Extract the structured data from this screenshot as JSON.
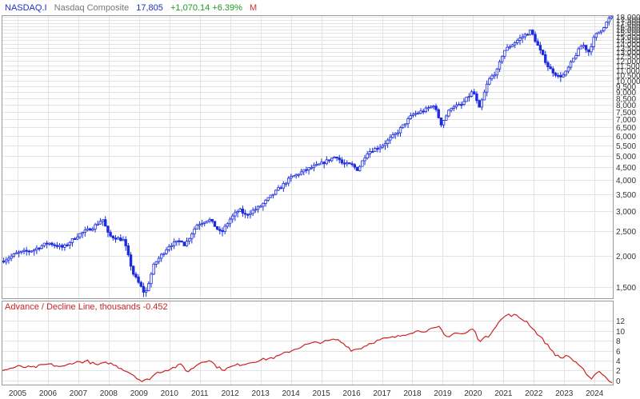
{
  "header": {
    "symbol": "NASDAQ.I",
    "name": "Nasdaq Composite",
    "last": "17,805",
    "change": "+1,070.14 +6.39%",
    "period": "M",
    "colors": {
      "symbol": "#1f2fc8",
      "name": "#777777",
      "last": "#1f2fc8",
      "change": "#1e9a1e",
      "period": "#d03030"
    }
  },
  "chart_data": [
    {
      "type": "candlestick",
      "title": "NASDAQ.I Nasdaq Composite",
      "color": "#1a2be0",
      "scale": "log",
      "ylim": [
        1350,
        18100
      ],
      "y_ticks": [
        1500,
        2000,
        2500,
        3000,
        3500,
        4000,
        4500,
        5000,
        5500,
        6000,
        6500,
        7000,
        7500,
        8000,
        8500,
        9000,
        9500,
        10000,
        10500,
        11000,
        11500,
        12000,
        12500,
        13000,
        13500,
        14000,
        14500,
        15000,
        15500,
        16000,
        16500,
        17000,
        17500,
        18000
      ],
      "y_tick_labels": [
        "1,500",
        "2,000",
        "2,500",
        "3,000",
        "3,500",
        "4,000",
        "4,500",
        "5,000",
        "5,500",
        "6,000",
        "6,500",
        "7,000",
        "7,500",
        "8,000",
        "8,500",
        "9,000",
        "9,500",
        "10,000",
        "10,500",
        "11,000",
        "11,500",
        "12,000",
        "12,500",
        "13,000",
        "13,500",
        "14,000",
        "14,500",
        "15,000",
        "15,500",
        "16,000",
        "16,500",
        "17,000",
        "17,500",
        "18,000"
      ],
      "x_label_years": [
        "2005",
        "2006",
        "2007",
        "2008",
        "2009",
        "2010",
        "2011",
        "2012",
        "2013",
        "2014",
        "2015",
        "2016",
        "2017",
        "2018",
        "2019",
        "2020",
        "2021",
        "2022",
        "2023",
        "2024"
      ],
      "close_keypoints": [
        [
          2004.5,
          1900
        ],
        [
          2005.0,
          2050
        ],
        [
          2005.5,
          2100
        ],
        [
          2006.0,
          2250
        ],
        [
          2006.5,
          2150
        ],
        [
          2007.0,
          2420
        ],
        [
          2007.5,
          2600
        ],
        [
          2007.8,
          2800
        ],
        [
          2008.0,
          2400
        ],
        [
          2008.5,
          2300
        ],
        [
          2008.8,
          1700
        ],
        [
          2009.2,
          1400
        ],
        [
          2009.5,
          1850
        ],
        [
          2010.0,
          2200
        ],
        [
          2010.4,
          2300
        ],
        [
          2010.5,
          2200
        ],
        [
          2010.9,
          2650
        ],
        [
          2011.3,
          2800
        ],
        [
          2011.7,
          2450
        ],
        [
          2012.0,
          2800
        ],
        [
          2012.3,
          3050
        ],
        [
          2012.5,
          2900
        ],
        [
          2013.0,
          3150
        ],
        [
          2013.5,
          3600
        ],
        [
          2014.0,
          4100
        ],
        [
          2014.5,
          4400
        ],
        [
          2015.0,
          4650
        ],
        [
          2015.5,
          5000
        ],
        [
          2015.7,
          4650
        ],
        [
          2016.0,
          4600
        ],
        [
          2016.2,
          4400
        ],
        [
          2016.5,
          5150
        ],
        [
          2017.0,
          5500
        ],
        [
          2017.5,
          6200
        ],
        [
          2018.0,
          7300
        ],
        [
          2018.4,
          7600
        ],
        [
          2018.7,
          8000
        ],
        [
          2018.95,
          6700
        ],
        [
          2019.3,
          7900
        ],
        [
          2019.6,
          7950
        ],
        [
          2020.0,
          9100
        ],
        [
          2020.2,
          7700
        ],
        [
          2020.5,
          10000
        ],
        [
          2020.8,
          11000
        ],
        [
          2021.0,
          13100
        ],
        [
          2021.5,
          14600
        ],
        [
          2021.9,
          15800
        ],
        [
          2022.2,
          13200
        ],
        [
          2022.5,
          11200
        ],
        [
          2022.8,
          10400
        ],
        [
          2023.0,
          10500
        ],
        [
          2023.3,
          12200
        ],
        [
          2023.6,
          14000
        ],
        [
          2023.8,
          13000
        ],
        [
          2024.0,
          15000
        ],
        [
          2024.3,
          16400
        ],
        [
          2024.5,
          17800
        ]
      ]
    },
    {
      "type": "line",
      "title": "Advance / Decline Line, thousands -0.452",
      "color": "#cc2222",
      "ylim": [
        -0.5,
        13.5
      ],
      "y_ticks": [
        0,
        2,
        4,
        6,
        8,
        10,
        12
      ],
      "y_tick_labels": [
        "0",
        "2",
        "4",
        "6",
        "8",
        "10",
        "12"
      ],
      "keypoints": [
        [
          2004.5,
          2.0
        ],
        [
          2005.0,
          2.8
        ],
        [
          2005.5,
          2.6
        ],
        [
          2006.0,
          3.3
        ],
        [
          2006.5,
          2.7
        ],
        [
          2006.8,
          3.6
        ],
        [
          2007.3,
          3.9
        ],
        [
          2007.6,
          3.1
        ],
        [
          2008.0,
          3.6
        ],
        [
          2008.5,
          2.2
        ],
        [
          2008.8,
          1.2
        ],
        [
          2009.1,
          -0.2
        ],
        [
          2009.3,
          0.2
        ],
        [
          2009.6,
          1.6
        ],
        [
          2010.0,
          2.3
        ],
        [
          2010.4,
          3.2
        ],
        [
          2010.6,
          1.7
        ],
        [
          2011.0,
          3.6
        ],
        [
          2011.3,
          4.2
        ],
        [
          2011.6,
          2.6
        ],
        [
          2011.8,
          2.2
        ],
        [
          2012.2,
          3.1
        ],
        [
          2012.5,
          3.4
        ],
        [
          2012.9,
          4.0
        ],
        [
          2013.5,
          4.7
        ],
        [
          2014.0,
          6.0
        ],
        [
          2014.5,
          7.2
        ],
        [
          2014.8,
          7.6
        ],
        [
          2015.2,
          7.9
        ],
        [
          2015.5,
          8.3
        ],
        [
          2015.8,
          7.2
        ],
        [
          2016.0,
          6.1
        ],
        [
          2016.3,
          6.5
        ],
        [
          2016.6,
          7.5
        ],
        [
          2017.0,
          8.3
        ],
        [
          2017.5,
          8.8
        ],
        [
          2018.0,
          9.8
        ],
        [
          2018.5,
          10.1
        ],
        [
          2018.9,
          10.7
        ],
        [
          2019.1,
          8.7
        ],
        [
          2019.4,
          9.6
        ],
        [
          2019.7,
          9.3
        ],
        [
          2020.0,
          10.5
        ],
        [
          2020.2,
          8.0
        ],
        [
          2020.5,
          8.9
        ],
        [
          2020.8,
          11.5
        ],
        [
          2021.1,
          13.2
        ],
        [
          2021.4,
          13.1
        ],
        [
          2021.8,
          11.7
        ],
        [
          2022.0,
          10.2
        ],
        [
          2022.3,
          8.2
        ],
        [
          2022.7,
          5.3
        ],
        [
          2022.9,
          4.4
        ],
        [
          2023.1,
          5.2
        ],
        [
          2023.4,
          3.4
        ],
        [
          2023.7,
          1.7
        ],
        [
          2023.9,
          0.3
        ],
        [
          2024.1,
          2.0
        ],
        [
          2024.3,
          1.2
        ],
        [
          2024.5,
          -0.45
        ]
      ]
    }
  ]
}
